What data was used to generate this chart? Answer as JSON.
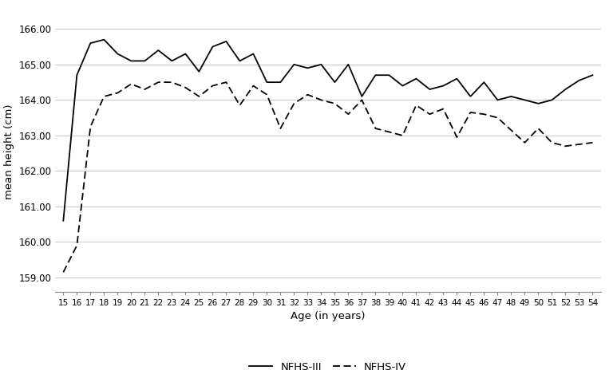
{
  "ages": [
    15,
    16,
    17,
    18,
    19,
    20,
    21,
    22,
    23,
    24,
    25,
    26,
    27,
    28,
    29,
    30,
    31,
    32,
    33,
    34,
    35,
    36,
    37,
    38,
    39,
    40,
    41,
    42,
    43,
    44,
    45,
    46,
    47,
    48,
    49,
    50,
    51,
    52,
    53,
    54
  ],
  "nfhs3": [
    160.6,
    164.7,
    165.6,
    165.7,
    165.3,
    165.1,
    165.1,
    165.4,
    165.1,
    165.3,
    164.8,
    165.5,
    165.65,
    165.1,
    165.3,
    164.5,
    164.5,
    165.0,
    164.9,
    165.0,
    164.5,
    165.0,
    164.1,
    164.7,
    164.7,
    164.4,
    164.6,
    164.3,
    164.4,
    164.6,
    164.1,
    164.5,
    164.0,
    164.1,
    164.0,
    163.9,
    164.0,
    164.3,
    164.55,
    164.7
  ],
  "nfhs4": [
    159.15,
    159.9,
    163.25,
    164.1,
    164.2,
    164.45,
    164.3,
    164.5,
    164.5,
    164.35,
    164.1,
    164.4,
    164.5,
    163.85,
    164.4,
    164.15,
    163.2,
    163.9,
    164.15,
    164.0,
    163.9,
    163.6,
    164.0,
    163.2,
    163.1,
    163.0,
    163.85,
    163.6,
    163.75,
    162.95,
    163.65,
    163.6,
    163.5,
    163.15,
    162.8,
    163.2,
    162.8,
    162.7,
    162.75,
    162.8
  ],
  "ylabel": "mean height (cm)",
  "xlabel": "Age (in years)",
  "yticks": [
    159.0,
    160.0,
    161.0,
    162.0,
    163.0,
    164.0,
    165.0,
    166.0
  ],
  "ylim": [
    158.6,
    166.5
  ],
  "line_color": "#000000",
  "legend_labels": [
    "NFHS-III",
    "NFHS-IV"
  ],
  "background_color": "#ffffff",
  "grid_color": "#c8c8c8"
}
